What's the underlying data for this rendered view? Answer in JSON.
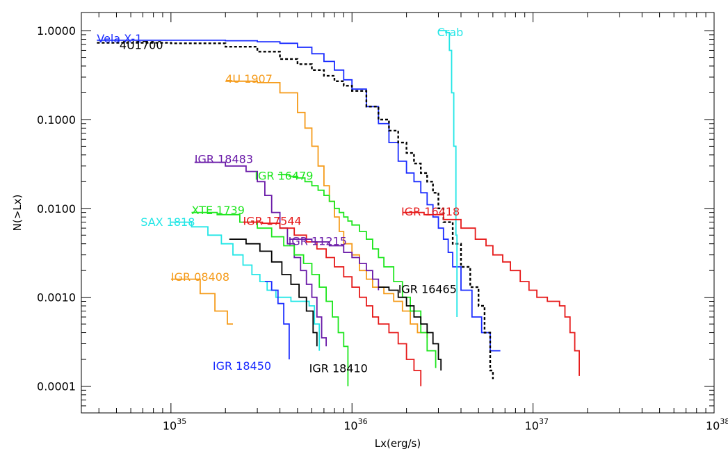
{
  "chart_data": {
    "type": "line",
    "title": "",
    "xlabel": "Lx(erg/s)",
    "ylabel": "N(>Lx)",
    "xscale": "log",
    "yscale": "log",
    "xlim": [
      3.2e+34,
      1e+38
    ],
    "ylim": [
      5e-05,
      1.6
    ],
    "grid": false,
    "legend": "none",
    "x_ticks": [
      {
        "value": 1e+35,
        "base": "10",
        "exp": "35"
      },
      {
        "value": 1e+36,
        "base": "10",
        "exp": "36"
      },
      {
        "value": 1e+37,
        "base": "10",
        "exp": "37"
      },
      {
        "value": 1e+38,
        "base": "10",
        "exp": "38"
      }
    ],
    "y_ticks": [
      {
        "value": 1.0,
        "label": "1.0000"
      },
      {
        "value": 0.1,
        "label": "0.1000"
      },
      {
        "value": 0.01,
        "label": "0.0100"
      },
      {
        "value": 0.001,
        "label": "0.0010"
      },
      {
        "value": 0.0001,
        "label": "0.0001"
      }
    ],
    "series": [
      {
        "name": "Vela X-1",
        "color": "#1a2cff",
        "dashed": false,
        "label_at": [
          3.9e+34,
          0.82
        ],
        "x": [
          3.9e+34,
          1e+35,
          2e+35,
          3e+35,
          4e+35,
          5e+35,
          6e+35,
          7e+35,
          8e+35,
          9e+35,
          1e+36,
          1.2e+36,
          1.4e+36,
          1.6e+36,
          1.8e+36,
          2e+36,
          2.2e+36,
          2.4e+36,
          2.6e+36,
          2.8e+36,
          3e+36,
          3.2e+36,
          3.4e+36,
          3.6e+36,
          4e+36,
          4.6e+36,
          5.2e+36,
          5.8e+36,
          6.6e+36
        ],
        "y": [
          0.78,
          0.78,
          0.77,
          0.75,
          0.72,
          0.65,
          0.55,
          0.45,
          0.36,
          0.28,
          0.22,
          0.14,
          0.09,
          0.055,
          0.034,
          0.025,
          0.02,
          0.015,
          0.011,
          0.008,
          0.006,
          0.0045,
          0.0032,
          0.0022,
          0.0012,
          0.0006,
          0.0004,
          0.00025,
          0.00025
        ]
      },
      {
        "name": "4U1700",
        "color": "#000000",
        "dashed": true,
        "label_at": [
          5.2e+34,
          0.69
        ],
        "x": [
          3.9e+34,
          1e+35,
          2e+35,
          3e+35,
          4e+35,
          5e+35,
          6e+35,
          7e+35,
          8e+35,
          9e+35,
          1e+36,
          1.2e+36,
          1.4e+36,
          1.6e+36,
          1.8e+36,
          2e+36,
          2.2e+36,
          2.4e+36,
          2.6e+36,
          2.8e+36,
          3e+36,
          3.2e+36,
          3.6e+36,
          4e+36,
          4.5e+36,
          5e+36,
          5.4e+36,
          5.8e+36,
          6e+36
        ],
        "y": [
          0.73,
          0.72,
          0.66,
          0.58,
          0.48,
          0.42,
          0.36,
          0.31,
          0.27,
          0.24,
          0.21,
          0.14,
          0.1,
          0.075,
          0.055,
          0.042,
          0.032,
          0.025,
          0.02,
          0.015,
          0.01,
          0.007,
          0.004,
          0.0022,
          0.0013,
          0.0008,
          0.0004,
          0.00015,
          0.00012
        ]
      },
      {
        "name": "Crab",
        "color": "#22e6e6",
        "dashed": false,
        "label_at": [
          2.95e+36,
          0.97
        ],
        "x": [
          3e+36,
          3.3e+36,
          3.45e+36,
          3.55e+36,
          3.65e+36,
          3.75e+36,
          3.8e+36
        ],
        "y": [
          1.0,
          0.95,
          0.6,
          0.2,
          0.05,
          0.005,
          0.0006
        ]
      },
      {
        "name": "4U 1907",
        "color": "#f59b1a",
        "dashed": false,
        "label_at": [
          2e+35,
          0.29
        ],
        "x": [
          2e+35,
          3e+35,
          4e+35,
          5e+35,
          5.5e+35,
          6e+35,
          6.5e+35,
          7e+35,
          7.5e+35,
          8e+35,
          8.5e+35,
          9e+35,
          1e+36,
          1.1e+36,
          1.2e+36,
          1.3e+36,
          1.5e+36,
          1.7e+36,
          1.9e+36,
          2.1e+36,
          2.3e+36,
          2.6e+36
        ],
        "y": [
          0.27,
          0.26,
          0.2,
          0.12,
          0.08,
          0.05,
          0.03,
          0.018,
          0.012,
          0.008,
          0.0055,
          0.004,
          0.003,
          0.002,
          0.0016,
          0.0013,
          0.0011,
          0.0009,
          0.0007,
          0.0005,
          0.0004,
          0.00035
        ]
      },
      {
        "name": "IGR 18483",
        "color": "#6a1aa8",
        "dashed": false,
        "label_at": [
          1.35e+35,
          0.036
        ],
        "x": [
          1.35e+35,
          2e+35,
          2.6e+35,
          3e+35,
          3.3e+35,
          3.6e+35,
          4e+35,
          4.4e+35,
          4.8e+35,
          5.2e+35,
          5.6e+35,
          6e+35,
          6.4e+35,
          6.8e+35,
          7.2e+35
        ],
        "y": [
          0.033,
          0.03,
          0.026,
          0.02,
          0.014,
          0.009,
          0.006,
          0.004,
          0.0028,
          0.002,
          0.0014,
          0.001,
          0.0006,
          0.00035,
          0.00028
        ]
      },
      {
        "name": "IGR 16479",
        "color": "#1ee61e",
        "dashed": false,
        "label_at": [
          2.9e+35,
          0.0235
        ],
        "x": [
          3.9e+35,
          4.5e+35,
          5e+35,
          5.5e+35,
          6e+35,
          6.5e+35,
          7e+35,
          7.5e+35,
          8e+35,
          8.5e+35,
          9e+35,
          9.5e+35,
          1e+36,
          1.1e+36,
          1.2e+36,
          1.3e+36,
          1.4e+36,
          1.5e+36,
          1.7e+36,
          1.9e+36,
          2.1e+36,
          2.4e+36,
          2.6e+36,
          2.9e+36
        ],
        "y": [
          0.024,
          0.023,
          0.022,
          0.02,
          0.018,
          0.016,
          0.014,
          0.012,
          0.01,
          0.009,
          0.008,
          0.0072,
          0.0065,
          0.0055,
          0.0045,
          0.0035,
          0.0028,
          0.0022,
          0.0015,
          0.001,
          0.0007,
          0.0004,
          0.00025,
          0.00016
        ]
      },
      {
        "name": "IGR 16418",
        "color": "#e61a1a",
        "dashed": false,
        "label_at": [
          1.87e+36,
          0.0093
        ],
        "x": [
          1.9e+36,
          2.5e+36,
          3.2e+36,
          4e+36,
          4.8e+36,
          5.5e+36,
          6e+36,
          6.8e+36,
          7.5e+36,
          8.5e+36,
          9.5e+36,
          1.05e+37,
          1.2e+37,
          1.4e+37,
          1.5e+37,
          1.6e+37,
          1.7e+37,
          1.8e+37
        ],
        "y": [
          0.009,
          0.0085,
          0.0075,
          0.006,
          0.0045,
          0.0038,
          0.003,
          0.0025,
          0.002,
          0.0015,
          0.0012,
          0.001,
          0.0009,
          0.0008,
          0.0006,
          0.0004,
          0.00025,
          0.00013
        ]
      },
      {
        "name": "XTE 1739",
        "color": "#1ee61e",
        "dashed": false,
        "label_at": [
          1.3e+35,
          0.0096
        ],
        "x": [
          1.3e+35,
          1.8e+35,
          2.4e+35,
          3e+35,
          3.6e+35,
          4.2e+35,
          4.8e+35,
          5.4e+35,
          6e+35,
          6.6e+35,
          7.2e+35,
          7.8e+35,
          8.4e+35,
          9e+35,
          9.5e+35
        ],
        "y": [
          0.009,
          0.0085,
          0.007,
          0.006,
          0.0048,
          0.0038,
          0.003,
          0.0024,
          0.0018,
          0.0013,
          0.0009,
          0.0006,
          0.0004,
          0.00028,
          0.0001
        ]
      },
      {
        "name": "IGR 17544",
        "color": "#e61a1a",
        "dashed": false,
        "label_at": [
          2.5e+35,
          0.0073
        ],
        "x": [
          2.5e+35,
          3.2e+35,
          4e+35,
          4.8e+35,
          5.6e+35,
          6.4e+35,
          7.2e+35,
          8e+35,
          9e+35,
          1e+36,
          1.1e+36,
          1.2e+36,
          1.3e+36,
          1.4e+36,
          1.6e+36,
          1.8e+36,
          2e+36,
          2.2e+36,
          2.4e+36
        ],
        "y": [
          0.007,
          0.0068,
          0.006,
          0.005,
          0.0042,
          0.0035,
          0.0028,
          0.0022,
          0.0017,
          0.0013,
          0.001,
          0.0008,
          0.0006,
          0.0005,
          0.0004,
          0.0003,
          0.0002,
          0.00015,
          0.0001
        ]
      },
      {
        "name": "SAX 1818",
        "color": "#22e6e6",
        "dashed": false,
        "label_at": [
          6.8e+34,
          0.0071
        ],
        "x": [
          1e+35,
          1.3e+35,
          1.6e+35,
          1.9e+35,
          2.2e+35,
          2.5e+35,
          2.8e+35,
          3.1e+35,
          3.4e+35,
          3.8e+35,
          4.2e+35,
          4.6e+35,
          5e+35,
          5.4e+35,
          5.8e+35,
          6.2e+35,
          6.6e+35
        ],
        "y": [
          0.007,
          0.0062,
          0.005,
          0.004,
          0.003,
          0.0023,
          0.0018,
          0.0015,
          0.0012,
          0.001,
          0.001,
          0.0009,
          0.0009,
          0.0009,
          0.0008,
          0.0005,
          0.00025
        ]
      },
      {
        "name": "IGR 11215",
        "color": "#6a1aa8",
        "dashed": false,
        "label_at": [
          4.45e+35,
          0.0043
        ],
        "x": [
          4.5e+35,
          6e+35,
          7.5e+35,
          9e+35,
          1e+36,
          1.1e+36,
          1.2e+36,
          1.3e+36,
          1.4e+36
        ],
        "y": [
          0.0045,
          0.0042,
          0.0038,
          0.0032,
          0.0028,
          0.0024,
          0.002,
          0.0016,
          0.0012
        ]
      },
      {
        "name": "IGR 08408",
        "color": "#f59b1a",
        "dashed": false,
        "label_at": [
          1e+35,
          0.0017
        ],
        "x": [
          1e+35,
          1.45e+35,
          1.45e+35,
          1.75e+35,
          1.75e+35,
          2.05e+35,
          2.05e+35,
          2.2e+35
        ],
        "y": [
          0.0016,
          0.0016,
          0.0011,
          0.0011,
          0.0007,
          0.0007,
          0.0005,
          0.0005
        ]
      },
      {
        "name": "IGR 16465",
        "color": "#000000",
        "dashed": false,
        "label_at": [
          1.8e+36,
          0.00125
        ],
        "x": [
          1.4e+36,
          1.6e+36,
          1.8e+36,
          2e+36,
          2.2e+36,
          2.4e+36,
          2.6e+36,
          2.8e+36,
          3e+36,
          3.1e+36
        ],
        "y": [
          0.0013,
          0.0012,
          0.001,
          0.0008,
          0.0006,
          0.0005,
          0.0004,
          0.0003,
          0.0002,
          0.00015
        ]
      },
      {
        "name": "IGR 18450",
        "color": "#1a2cff",
        "dashed": false,
        "label_at": [
          1.7e+35,
          0.00017
        ],
        "x": [
          3.3e+35,
          3.6e+35,
          3.9e+35,
          4.2e+35,
          4.5e+35
        ],
        "y": [
          0.0015,
          0.0012,
          0.00085,
          0.0005,
          0.0002
        ]
      },
      {
        "name": "IGR 18410",
        "color": "#000000",
        "dashed": false,
        "label_at": [
          5.8e+35,
          0.00016
        ],
        "x": [
          2.1e+35,
          2.6e+35,
          3.1e+35,
          3.6e+35,
          4.1e+35,
          4.6e+35,
          5.1e+35,
          5.6e+35,
          6.1e+35,
          6.4e+35
        ],
        "y": [
          0.0045,
          0.004,
          0.0033,
          0.0025,
          0.0018,
          0.0014,
          0.001,
          0.0007,
          0.0004,
          0.00028
        ]
      }
    ]
  }
}
